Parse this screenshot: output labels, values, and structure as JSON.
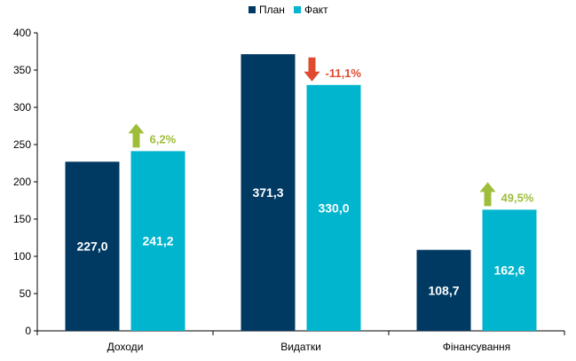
{
  "chart_data": {
    "type": "bar",
    "categories": [
      "Доходи",
      "Видатки",
      "Фінансування"
    ],
    "series": [
      {
        "name": "План",
        "values": [
          227.0,
          371.3,
          108.7
        ],
        "labels": [
          "227,0",
          "371,3",
          "108,7"
        ],
        "color": "#003A63"
      },
      {
        "name": "Факт",
        "values": [
          241.2,
          330.0,
          162.6
        ],
        "labels": [
          "241,2",
          "330,0",
          "162,6"
        ],
        "color": "#00B5CD"
      }
    ],
    "changes": [
      {
        "label": "6,2%",
        "direction": "up",
        "color": "#9EBE3A"
      },
      {
        "label": "-11,1%",
        "direction": "down",
        "color": "#E04A2F"
      },
      {
        "label": "49,5%",
        "direction": "up",
        "color": "#9EBE3A"
      }
    ],
    "yticks": [
      "0",
      "50",
      "100",
      "150",
      "200",
      "250",
      "300",
      "350",
      "400"
    ],
    "ylim": [
      0,
      400
    ],
    "legend_position": "top-center",
    "grid": false
  }
}
